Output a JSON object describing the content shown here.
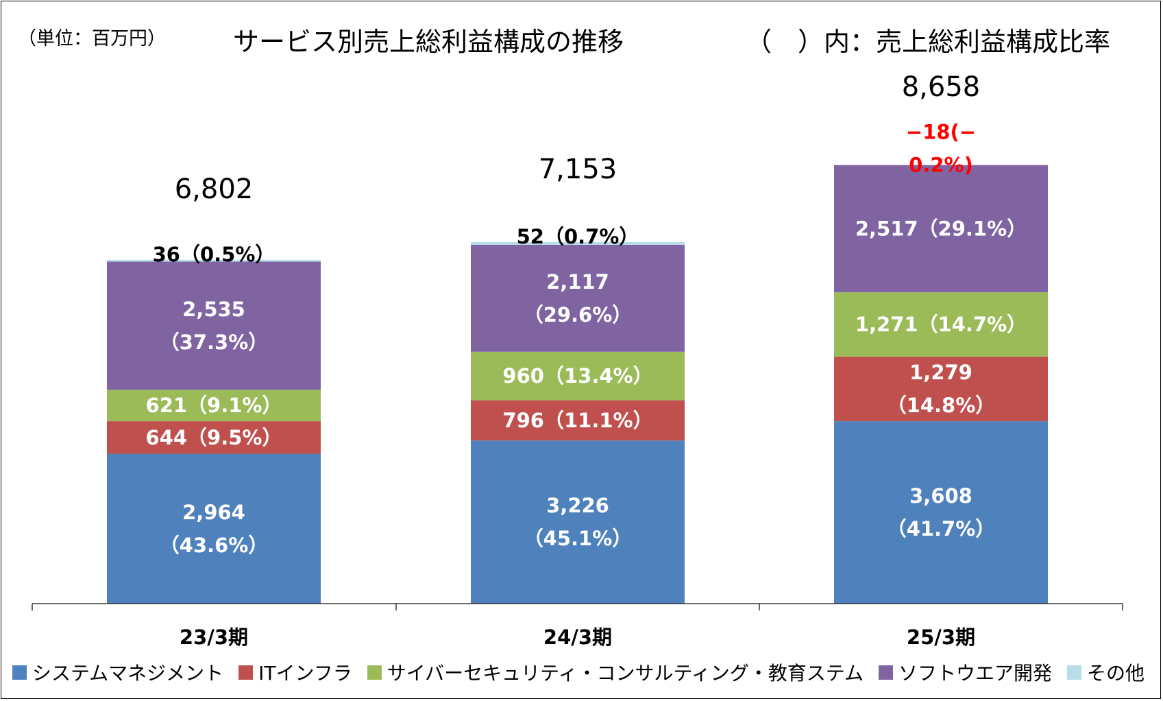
{
  "chart_data": {
    "type": "bar",
    "stacked": true,
    "unit_note": "（単位：百万円）",
    "title": "サービス別売上総利益構成の推移",
    "ratio_note": "（　）内：売上総利益構成比率",
    "categories": [
      "23/3期",
      "24/3期",
      "25/3期"
    ],
    "totals": [
      6802,
      7153,
      8658
    ],
    "total_labels": [
      "6,802",
      "7,153",
      "8,658"
    ],
    "ylim": [
      0,
      9000
    ],
    "series": [
      {
        "name": "システムマネジメント",
        "color": "#4f81bd",
        "values": [
          2964,
          3226,
          3608
        ],
        "labels": [
          [
            "2,964",
            "（43.6%）"
          ],
          [
            "3,226",
            "（45.1%）"
          ],
          [
            "3,608",
            "（41.7%）"
          ]
        ]
      },
      {
        "name": "ITインフラ",
        "color": "#c0504d",
        "values": [
          644,
          796,
          1279
        ],
        "labels": [
          [
            "644（9.5%）"
          ],
          [
            "796（11.1%）"
          ],
          [
            "1,279",
            "（14.8%）"
          ]
        ]
      },
      {
        "name": "サイバーセキュリティ・コンサルティング・教育ステム",
        "color": "#9bbb59",
        "values": [
          621,
          960,
          1271
        ],
        "labels": [
          [
            "621（9.1%）"
          ],
          [
            "960（13.4%）"
          ],
          [
            "1,271（14.7%）"
          ]
        ]
      },
      {
        "name": "ソフトウエア開発",
        "color": "#8064a2",
        "values": [
          2535,
          2117,
          2517
        ],
        "labels": [
          [
            "2,535",
            "（37.3%）"
          ],
          [
            "2,117",
            "（29.6%）"
          ],
          [
            "2,517（29.1%）"
          ]
        ]
      },
      {
        "name": "その他",
        "color": "#b7dde8",
        "values": [
          36,
          52,
          -18
        ],
        "labels": [
          [
            "36（0.5%）"
          ],
          [
            "52（0.7%）"
          ],
          [
            "−18(−",
            "0.2%)"
          ]
        ]
      }
    ],
    "label_colors": {
      "inside": "#ffffff",
      "outside": "#000000",
      "negative": "#ff0000"
    },
    "grid": false,
    "legend_position": "bottom"
  }
}
